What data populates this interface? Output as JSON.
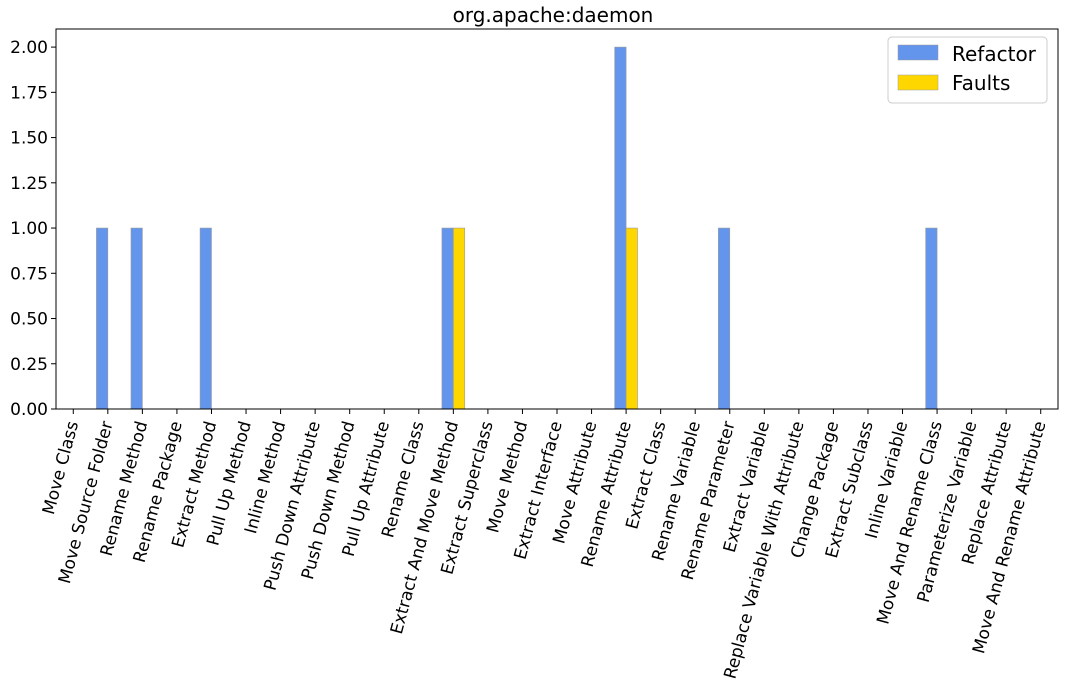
{
  "chart_data": {
    "type": "bar",
    "title": "org.apache:daemon",
    "xlabel": "",
    "ylabel": "",
    "ylim": [
      0,
      2.1
    ],
    "yticks": [
      "0.00",
      "0.25",
      "0.50",
      "0.75",
      "1.00",
      "1.25",
      "1.50",
      "1.75",
      "2.00"
    ],
    "categories": [
      "Move Class",
      "Move Source Folder",
      "Rename Method",
      "Rename Package",
      "Extract Method",
      "Pull Up Method",
      "Inline Method",
      "Push Down Attribute",
      "Push Down Method",
      "Pull Up Attribute",
      "Rename Class",
      "Extract And Move Method",
      "Extract Superclass",
      "Move Method",
      "Extract Interface",
      "Move Attribute",
      "Rename Attribute",
      "Extract Class",
      "Rename Variable",
      "Rename Parameter",
      "Extract Variable",
      "Replace Variable With Attribute",
      "Change Package",
      "Extract Subclass",
      "Inline Variable",
      "Move And Rename Class",
      "Parameterize Variable",
      "Replace Attribute",
      "Move And Rename Attribute"
    ],
    "series": [
      {
        "name": "Refactor",
        "color": "#6495ED",
        "values": [
          0,
          1,
          1,
          0,
          1,
          0,
          0,
          0,
          0,
          0,
          0,
          1,
          0,
          0,
          0,
          0,
          2,
          0,
          0,
          1,
          0,
          0,
          0,
          0,
          0,
          1,
          0,
          0,
          0
        ]
      },
      {
        "name": "Faults",
        "color": "#FFD700",
        "values": [
          0,
          0,
          0,
          0,
          0,
          0,
          0,
          0,
          0,
          0,
          0,
          1,
          0,
          0,
          0,
          0,
          1,
          0,
          0,
          0,
          0,
          0,
          0,
          0,
          0,
          0,
          0,
          0,
          0
        ]
      }
    ],
    "grid": false,
    "legend_position": "top-right"
  }
}
